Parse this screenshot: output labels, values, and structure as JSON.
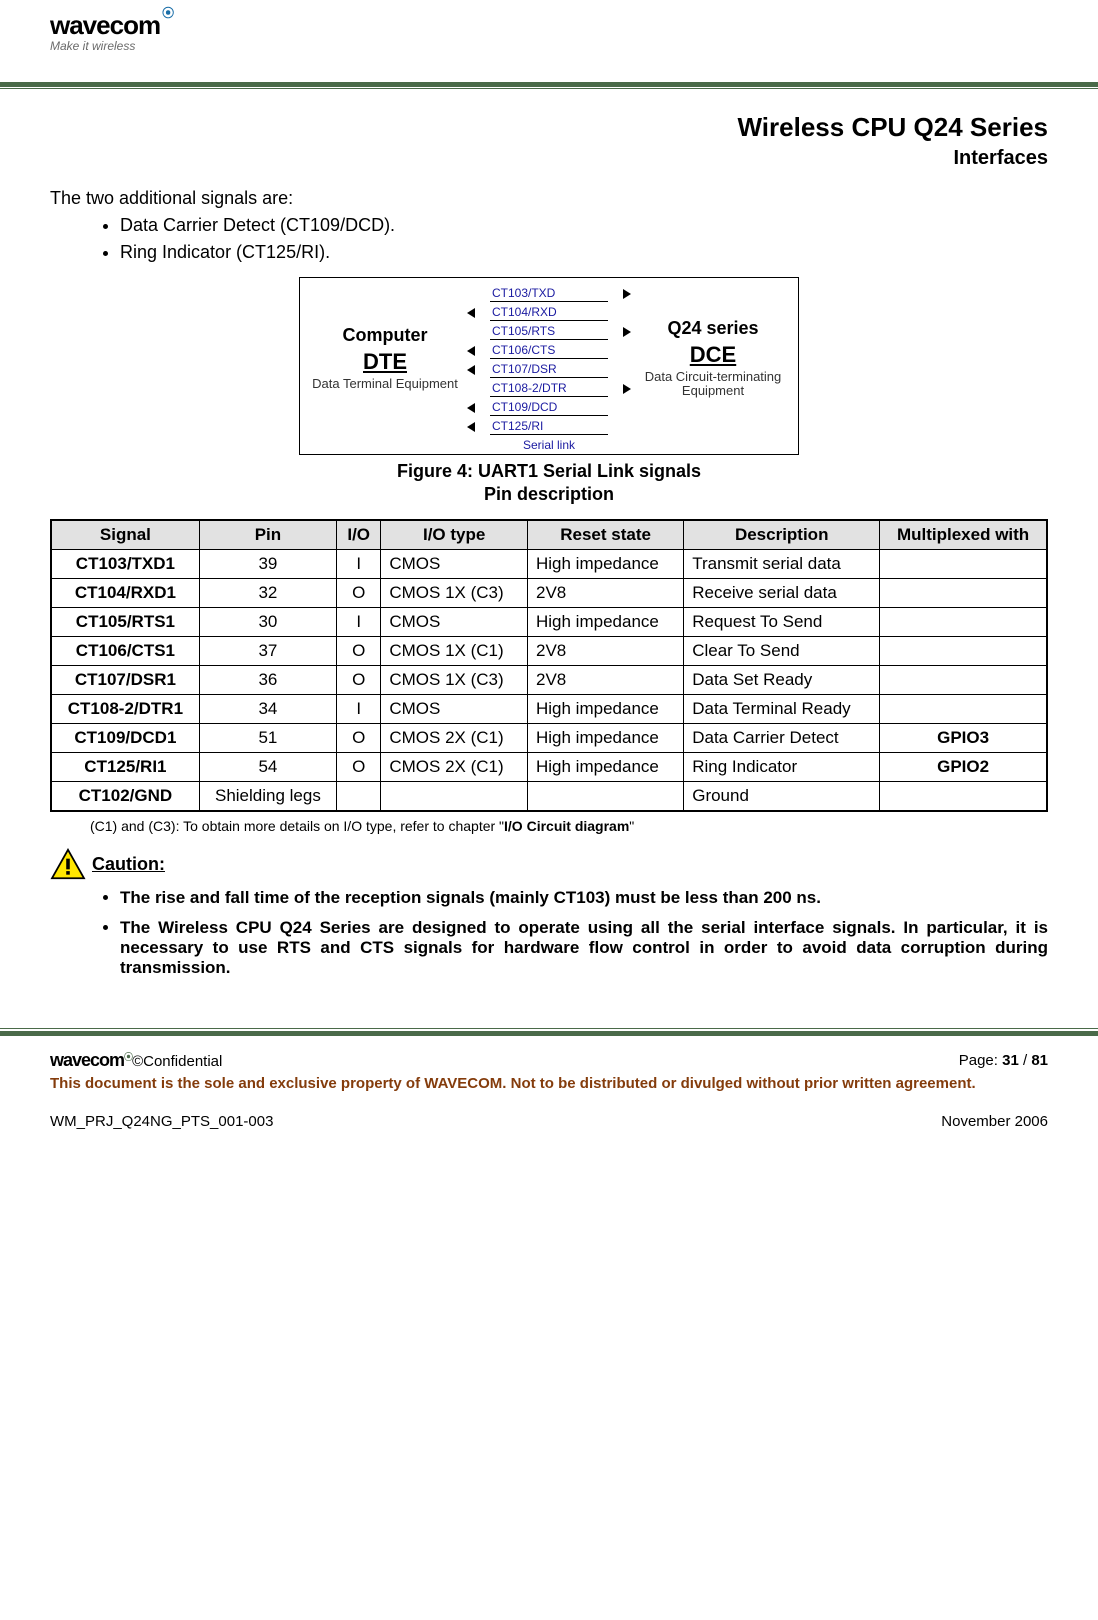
{
  "header": {
    "brand": "wavecom",
    "tagline": "Make it wireless"
  },
  "doc": {
    "title": "Wireless CPU Q24 Series",
    "subtitle": "Interfaces"
  },
  "intro_text": "The two additional signals are:",
  "signal_bullets": [
    "Data Carrier Detect (CT109/DCD).",
    "Ring Indicator (CT125/RI)."
  ],
  "diagram": {
    "left": {
      "title1": "Computer",
      "title2": "DTE",
      "sub": "Data Terminal Equipment"
    },
    "right": {
      "title1": "Q24 series",
      "title2": "DCE",
      "sub": "Data Circuit-terminating Equipment"
    },
    "signals": [
      {
        "label": "CT103/TXD",
        "dir": "right"
      },
      {
        "label": "CT104/RXD",
        "dir": "left"
      },
      {
        "label": "CT105/RTS",
        "dir": "right"
      },
      {
        "label": "CT106/CTS",
        "dir": "left"
      },
      {
        "label": "CT107/DSR",
        "dir": "left"
      },
      {
        "label": "CT108-2/DTR",
        "dir": "right"
      },
      {
        "label": "CT109/DCD",
        "dir": "left"
      },
      {
        "label": "CT125/RI",
        "dir": "left"
      }
    ],
    "bottom_label": "Serial link",
    "caption": "Figure 4: UART1 Serial Link signals",
    "sub_caption": "Pin description"
  },
  "table": {
    "columns": [
      "Signal",
      "Pin",
      "I/O",
      "I/O type",
      "Reset state",
      "Description",
      "Multiplexed with"
    ],
    "rows": [
      [
        "CT103/TXD1",
        "39",
        "I",
        "CMOS",
        "High impedance",
        "Transmit serial data",
        ""
      ],
      [
        "CT104/RXD1",
        "32",
        "O",
        "CMOS 1X (C3)",
        "2V8",
        "Receive serial data",
        ""
      ],
      [
        "CT105/RTS1",
        "30",
        "I",
        "CMOS",
        "High impedance",
        "Request To Send",
        ""
      ],
      [
        "CT106/CTS1",
        "37",
        "O",
        "CMOS 1X (C1)",
        "2V8",
        "Clear To Send",
        ""
      ],
      [
        "CT107/DSR1",
        "36",
        "O",
        "CMOS 1X (C3)",
        "2V8",
        "Data Set Ready",
        ""
      ],
      [
        "CT108-2/DTR1",
        "34",
        "I",
        "CMOS",
        "High impedance",
        "Data Terminal Ready",
        ""
      ],
      [
        "CT109/DCD1",
        "51",
        "O",
        "CMOS 2X (C1)",
        "High impedance",
        "Data Carrier Detect",
        "GPIO3"
      ],
      [
        "CT125/RI1",
        "54",
        "O",
        "CMOS 2X (C1)",
        "High impedance",
        "Ring Indicator",
        "GPIO2"
      ],
      [
        "CT102/GND",
        "Shielding legs",
        "",
        "",
        "",
        "Ground",
        ""
      ]
    ],
    "note_pre": "(C1) and (C3): To obtain more details on I/O type, refer to chapter \"",
    "note_bold": "I/O Circuit diagram",
    "note_post": "\""
  },
  "caution": {
    "label": "Caution:",
    "items": [
      "The rise and fall time of the reception signals (mainly CT103) must be less than 200 ns.",
      "The Wireless CPU Q24 Series are designed to operate using all the serial interface signals. In particular, it is necessary to use RTS and CTS signals for hardware flow control in order to avoid data corruption during transmission."
    ]
  },
  "footer": {
    "brand": "wavecom",
    "confidential": "©Confidential",
    "page_label_pre": "Page: ",
    "page_current": "31",
    "page_sep": " / ",
    "page_total": "81",
    "disclaimer": "This document is the sole and exclusive property of WAVECOM. Not to be distributed or divulged without prior written agreement.",
    "doc_ref": "WM_PRJ_Q24NG_PTS_001-003",
    "date": "November 2006"
  },
  "colors": {
    "separator": "#4a6a49",
    "signal_blue": "#1a1aa0",
    "disclaimer_brown": "#843c0c",
    "table_header_bg": "#e2e2e2",
    "caution_yellow": "#ffe600",
    "caution_border": "#000000"
  }
}
